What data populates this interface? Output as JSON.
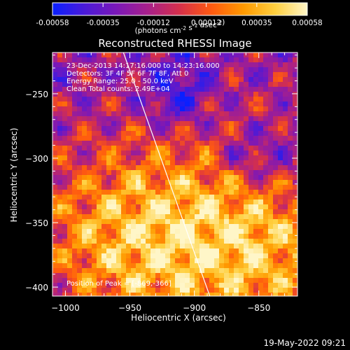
{
  "colorbar": {
    "tick_labels": [
      "-0.00058",
      "-0.00035",
      "-0.00012",
      "0.00012",
      "0.00035",
      "0.00058"
    ],
    "tick_values": [
      -0.00058,
      -0.00035,
      -0.00012,
      0.00012,
      0.00035,
      0.00058
    ],
    "units_label": "(photons cm^-2 s^-1 asec^-2)",
    "colors": [
      "#0a20ff",
      "#4a1ad8",
      "#7a18b8",
      "#a8208a",
      "#d6304a",
      "#ff5a10",
      "#ff9a00",
      "#ffd040",
      "#fff6c8"
    ]
  },
  "plot": {
    "title": "Reconstructed RHESSI Image",
    "xlabel": "Heliocentric X (arcsec)",
    "ylabel": "Heliocentric Y (arcsec)",
    "xlim": [
      -1010,
      -820
    ],
    "ylim": [
      -407,
      -218
    ],
    "x_ticks": [
      -1000,
      -950,
      -900,
      -850
    ],
    "y_ticks": [
      -400,
      -350,
      -300,
      -250
    ],
    "x_tick_labels": [
      "−1000",
      "−950",
      "−900",
      "−850"
    ],
    "y_tick_labels": [
      "−400",
      "−350",
      "−300",
      "−250"
    ],
    "annotations": [
      "23-Dec-2013 14:17:16.000 to 14:23:16.000",
      "Detectors: 3F 4F 5F 6F 7F 8F, Att 0",
      "Energy Range: 25.0 - 50.0 keV",
      "Clean     Total counts: 2.49E+04"
    ],
    "peak_label": "Position of Peak = [-869,-366]",
    "limb_line": {
      "x": [
        -955,
        -888
      ],
      "y": [
        -218,
        -407
      ],
      "color": "#ffffff"
    },
    "peak": {
      "x": -869,
      "y": -366
    }
  },
  "footer": {
    "timestamp": "19-May-2022 09:21"
  }
}
